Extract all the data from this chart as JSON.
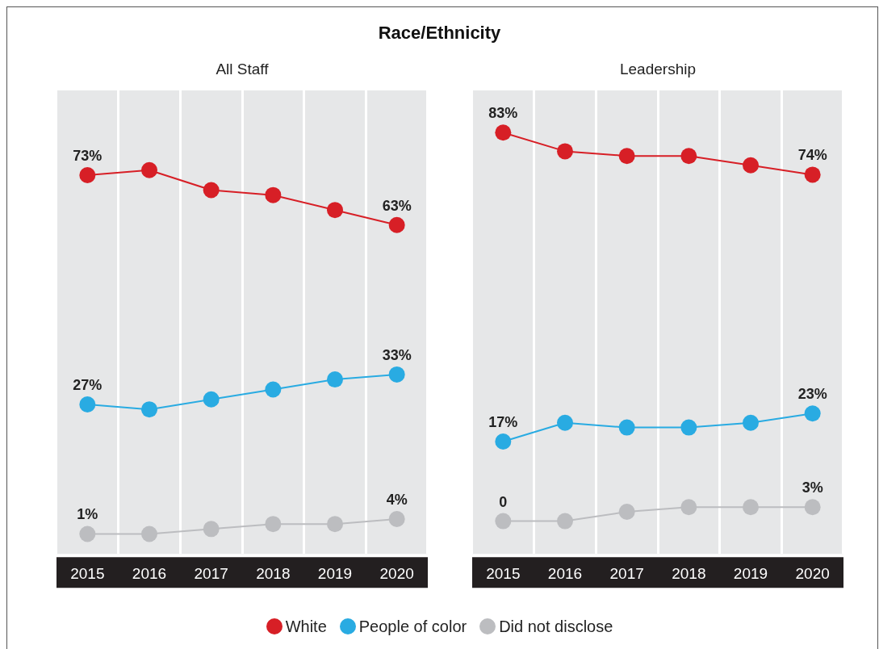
{
  "chart_data": [
    {
      "type": "line",
      "title": "Race/Ethnicity",
      "subtitle": "All Staff",
      "categories": [
        "2015",
        "2016",
        "2017",
        "2018",
        "2019",
        "2020"
      ],
      "ylim": [
        -3,
        90
      ],
      "grid": "x",
      "legend": "bottom",
      "marker": "circle",
      "series": [
        {
          "name": "White",
          "color": "#d71f26",
          "values": [
            73,
            74,
            70,
            69,
            66,
            63
          ],
          "value_labels": [
            "73%",
            null,
            null,
            null,
            null,
            "63%"
          ]
        },
        {
          "name": "People of color",
          "color": "#29abe2",
          "values": [
            27,
            26,
            28,
            30,
            32,
            33
          ],
          "value_labels": [
            "27%",
            null,
            null,
            null,
            null,
            "33%"
          ]
        },
        {
          "name": "Did not disclose",
          "color": "#bcbdc0",
          "values": [
            1,
            1,
            2,
            3,
            3,
            4
          ],
          "value_labels": [
            "1%",
            null,
            null,
            null,
            null,
            "4%"
          ]
        }
      ]
    },
    {
      "type": "line",
      "subtitle": "Leadership",
      "categories": [
        "2015",
        "2016",
        "2017",
        "2018",
        "2019",
        "2020"
      ],
      "ylim": [
        -7,
        92
      ],
      "grid": "x",
      "marker": "circle",
      "series": [
        {
          "color": "#d71f26",
          "values": [
            83,
            79,
            78,
            78,
            76,
            74
          ],
          "value_labels": [
            "83%",
            null,
            null,
            null,
            null,
            "74%"
          ]
        },
        {
          "color": "#29abe2",
          "values": [
            17,
            21,
            20,
            20,
            21,
            23
          ],
          "value_labels": [
            "17%",
            null,
            null,
            null,
            null,
            "23%"
          ]
        },
        {
          "color": "#bcbdc0",
          "values": [
            0,
            0,
            2,
            3,
            3,
            3
          ],
          "value_labels": [
            "0",
            null,
            null,
            null,
            null,
            "3%"
          ]
        }
      ]
    }
  ]
}
